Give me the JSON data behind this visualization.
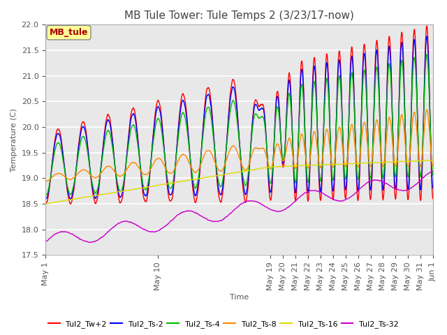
{
  "title": "MB Tule Tower: Tule Temps 2 (3/23/17-now)",
  "xlabel": "Time",
  "ylabel": "Temperature (C)",
  "ylim": [
    17.5,
    22.0
  ],
  "background_color": "#ffffff",
  "plot_bg_color": "#e8e8e8",
  "series": [
    {
      "label": "Tul2_Tw+2",
      "color": "#ff0000"
    },
    {
      "label": "Tul2_Ts-2",
      "color": "#0000ff"
    },
    {
      "label": "Tul2_Ts-4",
      "color": "#00bb00"
    },
    {
      "label": "Tul2_Ts-8",
      "color": "#ff8800"
    },
    {
      "label": "Tul2_Ts-16",
      "color": "#dddd00"
    },
    {
      "label": "Tul2_Ts-32",
      "color": "#cc00cc"
    }
  ],
  "day_positions": [
    0,
    9,
    18,
    19,
    20,
    21,
    22,
    23,
    24,
    25,
    26,
    27,
    28,
    29,
    30,
    31
  ],
  "day_labels": [
    "May 1",
    "May 10",
    "May 19",
    "May 20",
    "May 21",
    "May 22",
    "May 23",
    "May 24",
    "May 25",
    "May 26",
    "May 27",
    "May 28",
    "May 29",
    "May 30",
    "May 31",
    "Jun 1"
  ],
  "yticks": [
    17.5,
    18.0,
    18.5,
    19.0,
    19.5,
    20.0,
    20.5,
    21.0,
    21.5,
    22.0
  ],
  "annotation_label": "MB_tule",
  "annotation_color": "#aa0000",
  "annotation_bg": "#ffff99",
  "title_fontsize": 11,
  "axis_fontsize": 8,
  "tick_fontsize": 8,
  "legend_fontsize": 8,
  "linewidth": 1.0
}
